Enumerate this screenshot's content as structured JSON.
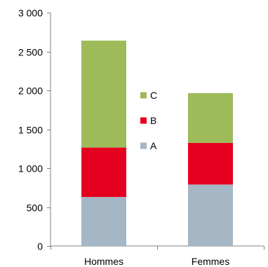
{
  "chart_data": {
    "type": "bar",
    "stacked": true,
    "categories": [
      "Hommes",
      "Femmes"
    ],
    "series": [
      {
        "name": "A",
        "color": "#a5b6c5",
        "values": [
          630,
          790
        ]
      },
      {
        "name": "B",
        "color": "#e5001f",
        "values": [
          635,
          535
        ]
      },
      {
        "name": "C",
        "color": "#9dbb59",
        "values": [
          1375,
          640
        ]
      }
    ],
    "ylim": [
      0,
      3000
    ],
    "yticks": [
      0,
      500,
      1000,
      1500,
      2000,
      2500,
      3000
    ],
    "ytick_labels": [
      "0",
      "500",
      "1 000",
      "1 500",
      "2 000",
      "2 500",
      "3 000"
    ],
    "grid": false,
    "legend_position": "center",
    "legend_order": [
      "C",
      "B",
      "A"
    ],
    "axis_color": "#808080"
  }
}
